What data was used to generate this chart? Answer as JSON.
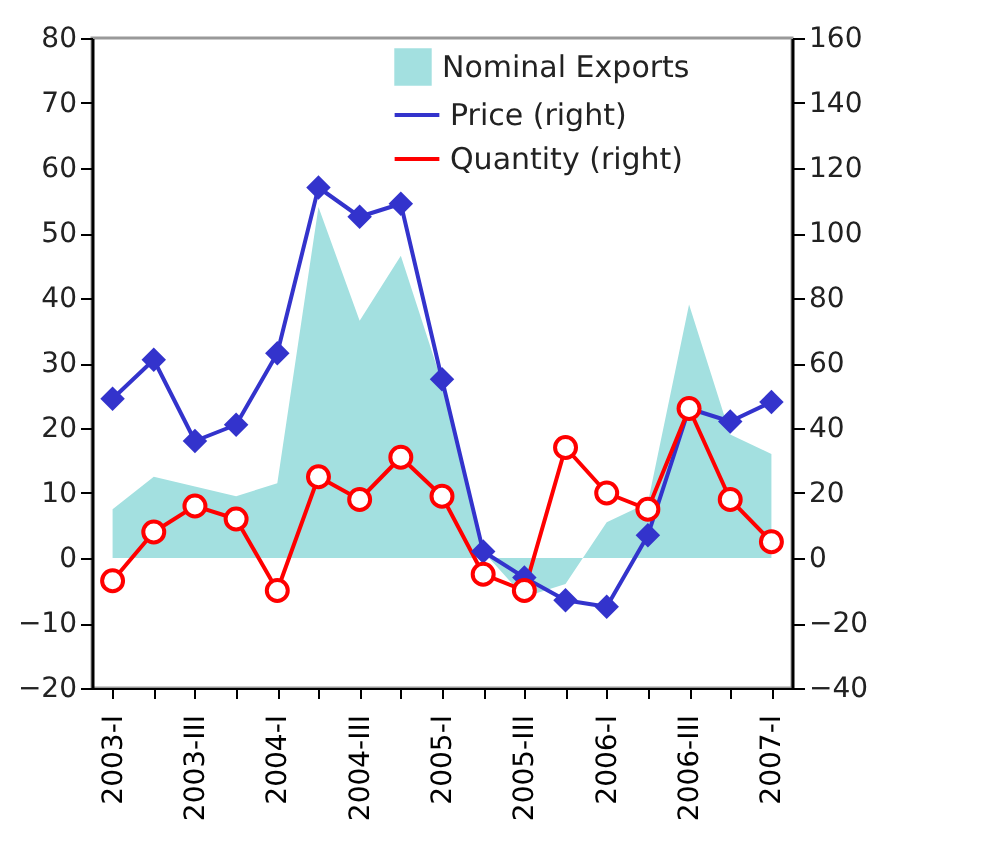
{
  "chart_data": {
    "type": "area",
    "categories": [
      "2003-I",
      null,
      "2003-III",
      null,
      "2004-I",
      null,
      "2004-III",
      null,
      "2005-I",
      null,
      "2005-III",
      null,
      "2006-I",
      null,
      "2006-III",
      null,
      "2007-I"
    ],
    "series": [
      {
        "name": "Nominal Exports",
        "color": "#a3e0e0",
        "values": [
          7.5,
          12.5,
          11,
          9.5,
          11.5,
          54,
          36.5,
          46.5,
          27,
          1,
          -6,
          -4,
          5.5,
          8.5,
          39,
          19,
          16
        ]
      },
      {
        "name": "Price (right)",
        "type": "line",
        "axis": "y2",
        "marker": "diamond",
        "color": "#3333cc",
        "values": [
          49,
          61,
          36,
          41,
          63,
          114,
          105,
          109,
          55,
          2,
          -6,
          -13,
          -15,
          7,
          46,
          42,
          48
        ]
      },
      {
        "name": "Quantity (right)",
        "type": "line",
        "axis": "y2",
        "marker": "circle",
        "color": "#ff0000",
        "values": [
          -7,
          8,
          16,
          12,
          -10,
          25,
          18,
          31,
          19,
          -5,
          -10,
          34,
          20,
          15,
          46,
          18,
          5
        ]
      }
    ],
    "ylim": [
      -20,
      80
    ],
    "yticks": [
      -20,
      -10,
      0,
      10,
      20,
      30,
      40,
      50,
      60,
      70,
      80
    ],
    "y2lim": [
      -40,
      160
    ],
    "y2ticks": [
      -40,
      -20,
      0,
      20,
      40,
      60,
      80,
      100,
      120,
      140,
      160
    ],
    "grid": false,
    "legend": "top right"
  }
}
